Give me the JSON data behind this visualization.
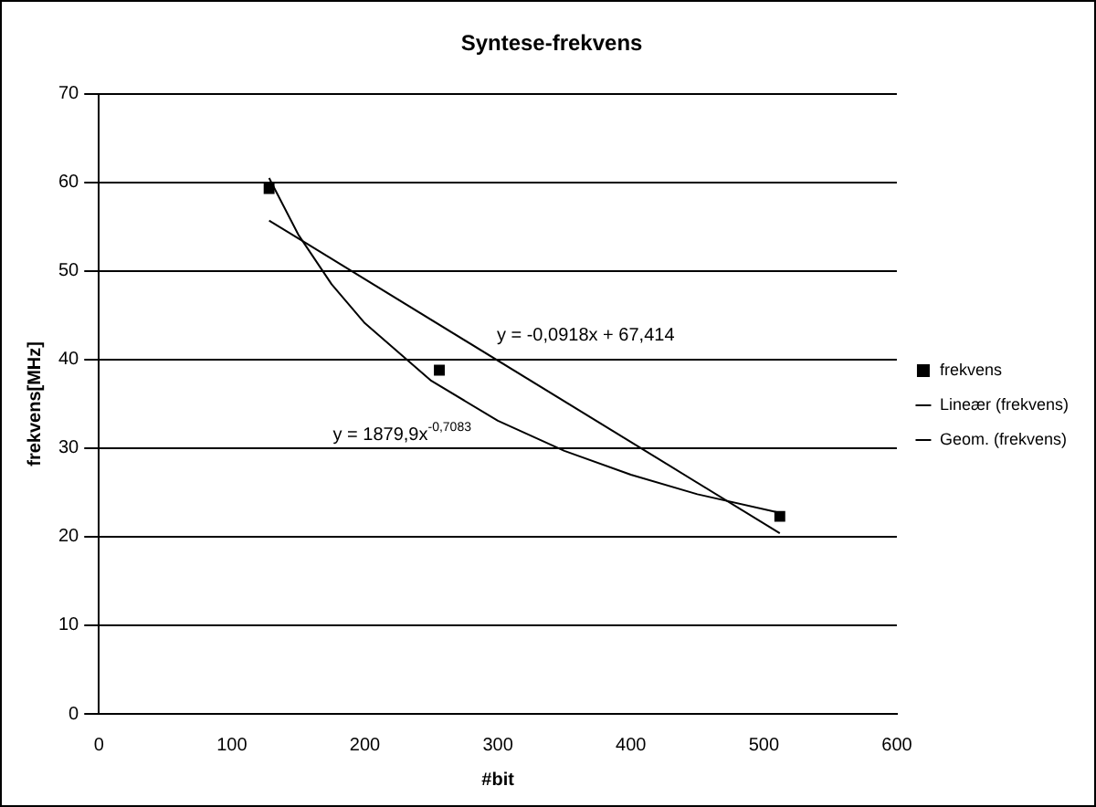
{
  "chart_data": {
    "type": "scatter",
    "title": "Syntese-frekvens",
    "xlabel": "#bit",
    "ylabel": "frekvens[MHz]",
    "xlim": [
      0,
      600
    ],
    "xticks": [
      0,
      100,
      200,
      300,
      400,
      500,
      600
    ],
    "ylim": [
      0,
      70
    ],
    "yticks": [
      0,
      10,
      20,
      30,
      40,
      50,
      60,
      70
    ],
    "grid": "y",
    "legend": "right",
    "series": [
      {
        "name": "frekvens",
        "marker": "square",
        "color": "#000000",
        "x": [
          128,
          256,
          512
        ],
        "values": [
          59.3,
          38.8,
          22.3
        ]
      },
      {
        "name": "Lineær (frekvens)",
        "type": "line",
        "marker": "none",
        "color": "#000000",
        "x": [
          128,
          512
        ],
        "values": [
          55.7,
          20.4
        ]
      },
      {
        "name": "Geom. (frekvens)",
        "type": "line",
        "marker": "none",
        "color": "#000000",
        "x": [
          128,
          150,
          175,
          200,
          250,
          300,
          350,
          400,
          450,
          512
        ],
        "values": [
          60.5,
          54.1,
          48.5,
          44.1,
          37.6,
          33.1,
          29.7,
          27.0,
          24.8,
          22.7
        ]
      }
    ],
    "annotations": [
      "y = -0,0918x + 67,414",
      "y = 1879,9x$^{-0,7083}$"
    ]
  }
}
